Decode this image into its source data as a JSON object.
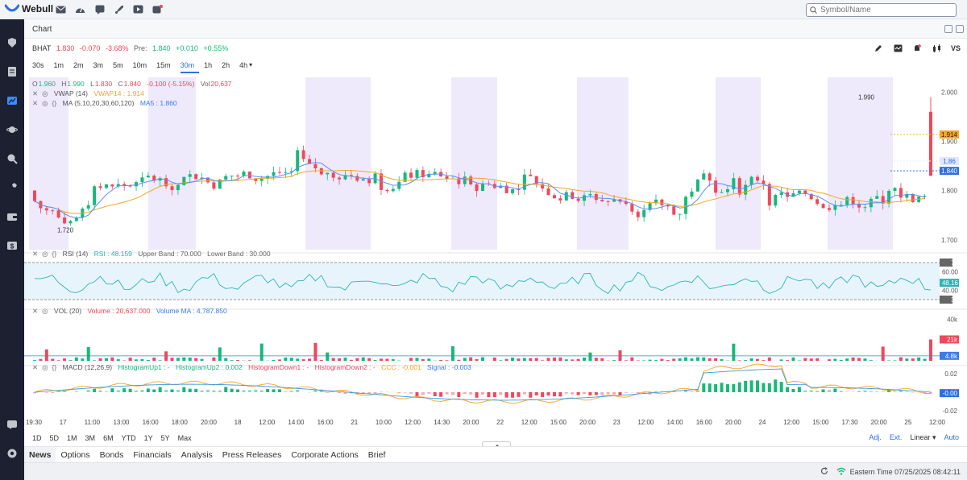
{
  "app": {
    "name": "Webull"
  },
  "search": {
    "placeholder": "Symbol/Name"
  },
  "window": {
    "title": "Chart"
  },
  "quote": {
    "symbol": "BHAT",
    "last": "1.830",
    "change": "-0.070",
    "change_pct": "-3.68%",
    "pre_label": "Pre:",
    "pre_price": "1.840",
    "pre_change": "+0.010",
    "pre_change_pct": "+0.55%"
  },
  "intervals": [
    "30s",
    "1m",
    "2m",
    "3m",
    "5m",
    "10m",
    "15m",
    "30m",
    "1h",
    "2h",
    "4h"
  ],
  "interval_active": "30m",
  "interval_dropdown_suffix": "▾",
  "ohlc": {
    "o_label": "O",
    "o": "1.960",
    "h_label": "H",
    "h": "1.990",
    "l_label": "L",
    "l": "1.830",
    "c_label": "C",
    "c": "1.840",
    "chg": "-0.100 (-5.15%)",
    "vol_label": "Vol",
    "vol": "20,637"
  },
  "indicators": {
    "vwap": {
      "name": "VWAP (14)",
      "value": "VWAP14 : 1.914"
    },
    "ma": {
      "name": "MA (5,10,20,30,60,120)",
      "value": "MA5 : 1.860"
    },
    "rsi": {
      "name": "RSI (14)",
      "value": "RSI : 48.159",
      "upper": "Upper Band : 70.000",
      "lower": "Lower Band : 30.000"
    },
    "vol": {
      "name": "VOL (20)",
      "value": "Volume : 20,637.000",
      "ma": "Volume MA : 4,787.850"
    },
    "macd": {
      "name": "MACD (12,26,9)",
      "h_up1": "HistogramUp1 : -",
      "h_up2": "HistogramUp2 : 0.002",
      "h_dn1": "HistogramDown1 : -",
      "h_dn2": "HistogramDown2 : -",
      "ccc": "CCC : -0.001",
      "signal": "Signal : -0.003"
    }
  },
  "price_axis": {
    "ticks": [
      "2.000",
      "1.900",
      "1.800",
      "1.700"
    ],
    "tag_vwap": "1.914",
    "tag_ma": "1.86",
    "tag_last": "1.840",
    "high_label": "1.990",
    "low_label": "1.720"
  },
  "rsi_axis": {
    "ticks": [
      "70",
      "60.00",
      "48.16",
      "40.00",
      "30"
    ]
  },
  "vol_axis": {
    "ticks": [
      "40k",
      "21k",
      "4.8k"
    ]
  },
  "macd_axis": {
    "ticks": [
      "0.02",
      "-0.00",
      "-0.02"
    ]
  },
  "time_axis": [
    "19:30",
    "17",
    "11:00",
    "13:00",
    "16:00",
    "18:00",
    "20:00",
    "18",
    "12:00",
    "14:00",
    "16:00",
    "21",
    "10:00",
    "12:00",
    "14:30",
    "20:00",
    "22",
    "12:00",
    "15:00",
    "20:00",
    "23",
    "12:00",
    "14:00",
    "16:00",
    "20:00",
    "24",
    "12:00",
    "15:00",
    "17:30",
    "20:00",
    "25",
    "12:00"
  ],
  "ranges": [
    "1D",
    "5D",
    "1M",
    "3M",
    "6M",
    "YTD",
    "1Y",
    "5Y",
    "Max"
  ],
  "range_options": {
    "adj": "Adj.",
    "ext": "Ext.",
    "scale": "Linear ▾",
    "auto": "Auto"
  },
  "bottom_tabs": [
    "News",
    "Options",
    "Bonds",
    "Financials",
    "Analysis",
    "Press Releases",
    "Corporate Actions",
    "Brief"
  ],
  "bottom_tab_active": "News",
  "status": {
    "time": "Eastern Time 07/25/2025 08:42:11"
  },
  "colors": {
    "up": "#16b979",
    "down": "#f0485a",
    "vwap": "#f5a623",
    "ma": "#5b8ff9",
    "shade": "#eee9fb",
    "accent": "#2f6fe4"
  },
  "chart_data": {
    "type": "candlestick",
    "session_shading": "pre/post market shaded purple",
    "price_range": [
      1.68,
      2.03
    ],
    "last_close": 1.84,
    "period_high": 1.99,
    "period_low": 1.72,
    "rsi_bands": [
      30,
      70
    ]
  }
}
